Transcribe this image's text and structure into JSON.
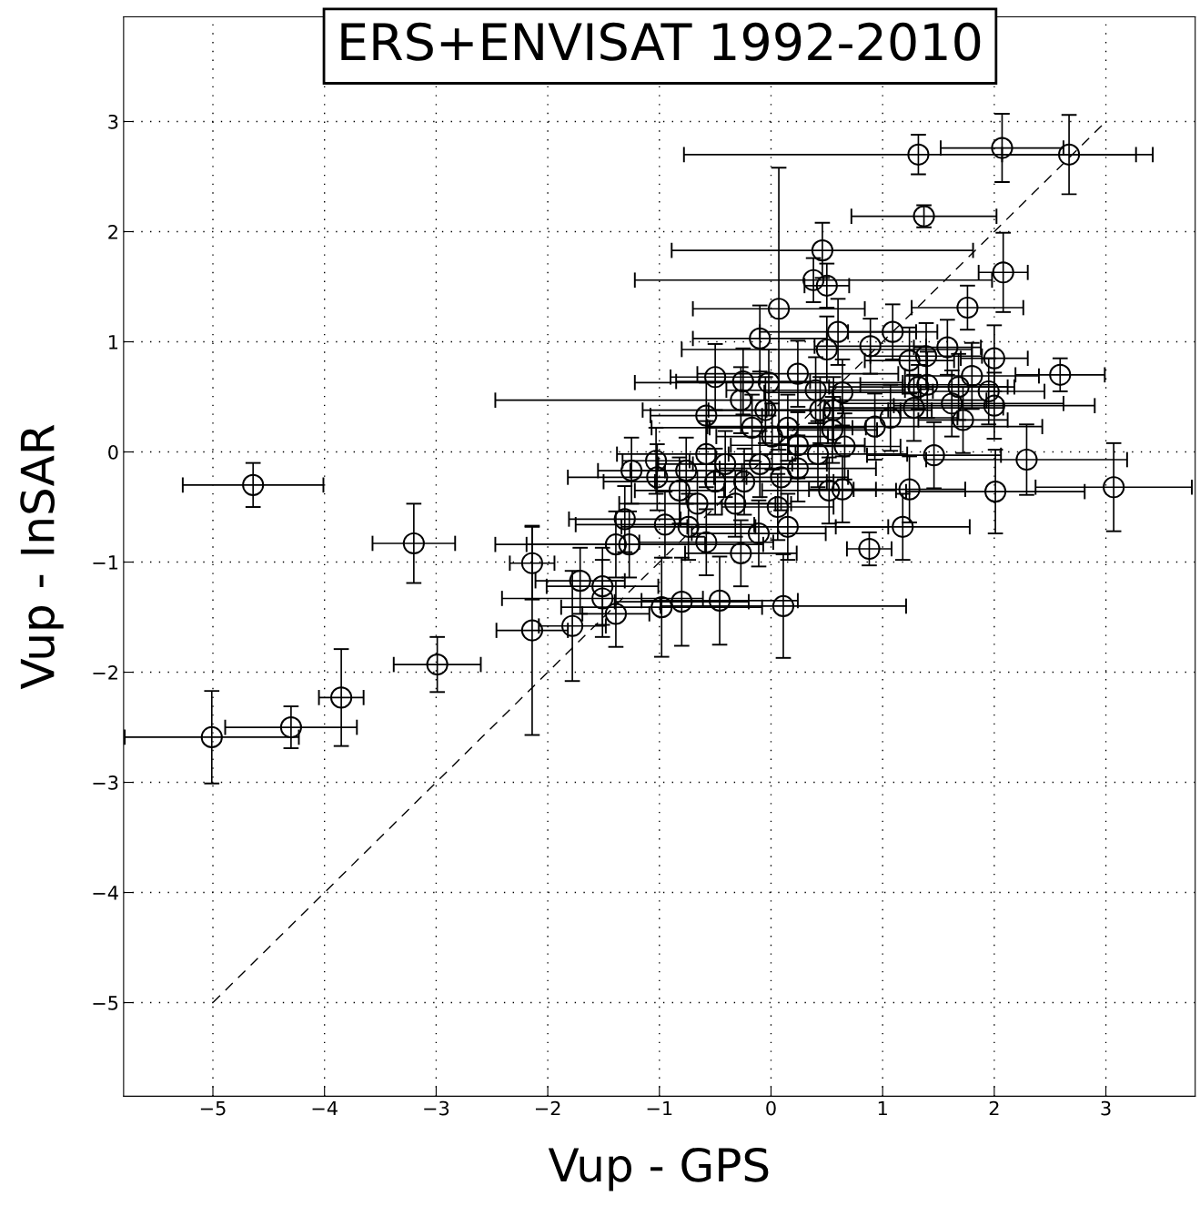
{
  "chart_data": {
    "type": "scatter",
    "title": "ERS+ENVISAT 1992-2010",
    "xlabel": "Vup - GPS",
    "ylabel": "Vup - InSAR",
    "xlim": [
      -5.8,
      3.8
    ],
    "ylim": [
      -5.85,
      3.95
    ],
    "xticks": [
      -5,
      -4,
      -3,
      -2,
      -1,
      0,
      1,
      2,
      3
    ],
    "yticks": [
      -5,
      -4,
      -3,
      -2,
      -1,
      0,
      1,
      2,
      3
    ],
    "grid": true,
    "series": [
      {
        "color": "#000000",
        "marker": "circle",
        "x": [
          -4.64,
          -3.2,
          -2.99,
          -3.85,
          -4.3,
          -5.01,
          1.32,
          2.07,
          2.67,
          1.37,
          0.46,
          2.08,
          0.38,
          0.5,
          0.07,
          1.76,
          -0.1,
          1.09,
          0.6,
          0.89,
          1.58,
          1.24,
          1.39,
          2.0,
          2.59,
          3.07,
          2.29,
          2.01,
          1.46,
          0.88,
          1.18,
          1.24,
          0.11,
          -0.46,
          -0.8,
          -0.98,
          -1.39,
          -1.51,
          -1.51,
          -1.71,
          -1.78,
          -2.14,
          -2.14,
          -1.39,
          -1.27,
          -1.31,
          -1.25,
          -0.95,
          -0.74,
          -0.5,
          -0.58,
          -0.25,
          -0.02,
          0.5,
          1.32,
          1.4,
          1.68,
          1.8,
          1.95,
          2.0,
          1.62,
          1.72,
          1.28,
          1.07,
          0.93,
          0.64,
          0.55,
          0.66,
          0.64,
          0.52,
          0.42,
          0.24,
          0.44,
          0.24,
          0.15,
          0.01,
          -0.05,
          -0.1,
          -0.24,
          -0.32,
          -0.41,
          -0.5,
          -0.66,
          -0.58,
          -0.76,
          -1.03,
          -1.02,
          -0.82,
          -0.58,
          -0.27,
          -0.11,
          0.06,
          0.15,
          0.09,
          0.24,
          -0.17,
          -0.27,
          0.4,
          0.56
        ],
        "values": [
          -0.3,
          -0.83,
          -1.93,
          -2.23,
          -2.5,
          -2.59,
          2.7,
          2.76,
          2.7,
          2.14,
          1.83,
          1.63,
          1.56,
          1.51,
          1.3,
          1.31,
          1.03,
          1.09,
          1.09,
          0.96,
          0.95,
          0.83,
          0.87,
          0.85,
          0.7,
          -0.32,
          -0.07,
          -0.36,
          -0.03,
          -0.88,
          -0.68,
          -0.34,
          -1.4,
          -1.35,
          -1.36,
          -1.41,
          -1.47,
          -1.33,
          -1.22,
          -1.17,
          -1.58,
          -1.62,
          -1.01,
          -0.84,
          -0.84,
          -0.61,
          -0.17,
          -0.66,
          -0.68,
          0.68,
          0.33,
          0.64,
          0.63,
          0.93,
          0.59,
          0.61,
          0.59,
          0.69,
          0.55,
          0.42,
          0.44,
          0.29,
          0.4,
          0.31,
          0.23,
          0.54,
          0.2,
          0.05,
          -0.34,
          -0.35,
          -0.02,
          0.06,
          0.38,
          0.71,
          0.22,
          0.14,
          0.38,
          -0.11,
          -0.27,
          -0.47,
          -0.11,
          -0.27,
          -0.47,
          -0.02,
          -0.17,
          -0.08,
          -0.23,
          -0.35,
          -0.82,
          -0.92,
          -0.74,
          -0.5,
          -0.68,
          -0.23,
          -0.15,
          0.22,
          0.47,
          0.56,
          0.38
        ],
        "errors": [
          0.2,
          0.36,
          0.25,
          0.44,
          0.19,
          0.42,
          0.18,
          0.31,
          0.36,
          0.1,
          0.25,
          0.36,
          0.2,
          0.2,
          1.28,
          0.2,
          0.3,
          0.25,
          0.3,
          0.25,
          0.25,
          0.3,
          0.3,
          0.3,
          0.15,
          0.4,
          0.32,
          0.38,
          0.3,
          0.15,
          0.3,
          0.3,
          0.47,
          0.4,
          0.4,
          0.45,
          0.3,
          0.35,
          0.35,
          0.3,
          0.5,
          0.95,
          0.33,
          0.3,
          0.3,
          0.3,
          0.3,
          0.3,
          0.3,
          0.3,
          0.3,
          0.3,
          0.3,
          0.3,
          0.2,
          0.3,
          0.3,
          0.3,
          0.3,
          0.3,
          0.3,
          0.3,
          0.3,
          0.3,
          0.3,
          0.3,
          0.3,
          0.3,
          0.3,
          0.3,
          0.3,
          0.3,
          0.3,
          0.3,
          0.3,
          0.3,
          0.3,
          0.3,
          0.3,
          0.3,
          0.3,
          0.3,
          0.3,
          0.3,
          0.3,
          0.3,
          0.3,
          0.3,
          0.3,
          0.3,
          0.3,
          0.3,
          0.3,
          0.3,
          0.3,
          0.3,
          0.3,
          0.3,
          0.3
        ],
        "xerrors": [
          0.63,
          0.37,
          0.39,
          0.2,
          0.59,
          0.78,
          2.1,
          0.55,
          0.6,
          0.65,
          1.35,
          0.22,
          1.6,
          0.2,
          0.77,
          0.5,
          0.6,
          0.4,
          0.7,
          0.5,
          0.3,
          0.4,
          0.5,
          0.3,
          0.4,
          0.7,
          0.9,
          0.8,
          0.6,
          0.2,
          0.6,
          0.5,
          1.1,
          0.7,
          0.6,
          0.9,
          0.3,
          0.9,
          0.5,
          0.4,
          0.3,
          0.32,
          0.2,
          0.8,
          1.2,
          0.5,
          0.3,
          0.8,
          0.6,
          0.4,
          0.5,
          0.6,
          1.2,
          1.3,
          0.8,
          0.6,
          0.5,
          0.6,
          0.5,
          0.9,
          1.0,
          0.4,
          0.8,
          0.6,
          1.5,
          0.7,
          0.4,
          0.5,
          0.3,
          0.6,
          0.8,
          0.6,
          1.0,
          0.9,
          0.7,
          0.5,
          1.1,
          0.6,
          0.8,
          0.5,
          0.6,
          1.0,
          0.7,
          0.8,
          0.5,
          0.3,
          0.8,
          0.4,
          0.6,
          0.5,
          0.6,
          0.5,
          0.9,
          0.6,
          0.7,
          0.9,
          2.2,
          0.8,
          0.6
        ]
      },
      {
        "type": "line",
        "color": "#000000",
        "line_style": "dashed",
        "x": [
          -5,
          3
        ],
        "values": [
          -5,
          3
        ]
      }
    ]
  }
}
